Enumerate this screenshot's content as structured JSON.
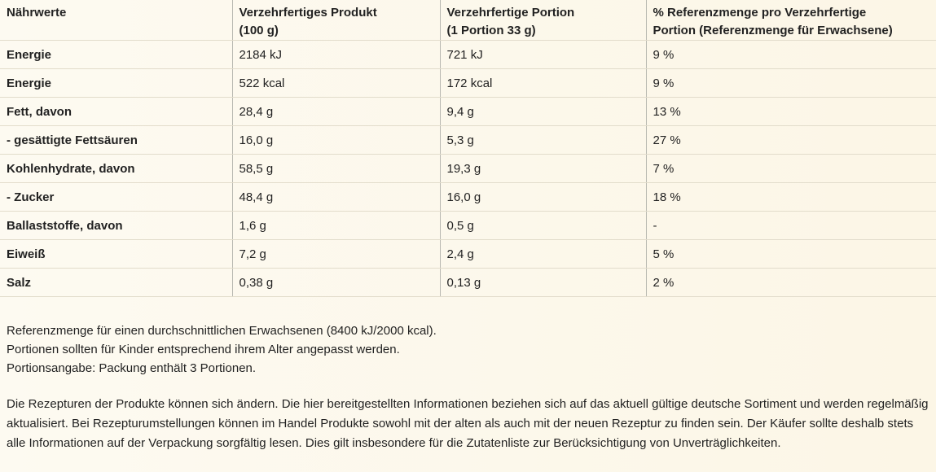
{
  "table": {
    "headers": [
      [
        "Nährwerte"
      ],
      [
        "Verzehrfertiges Produkt",
        "(100 g)"
      ],
      [
        "Verzehrfertige Portion",
        "(1 Portion 33 g)"
      ],
      [
        "% Referenzmenge pro Verzehrfertige",
        "Portion (Referenzmenge für Erwachsene)"
      ]
    ],
    "rows": [
      [
        "Energie",
        "2184 kJ",
        "721 kJ",
        "9 %"
      ],
      [
        "Energie",
        "522 kcal",
        "172 kcal",
        "9 %"
      ],
      [
        "Fett, davon",
        "28,4 g",
        "9,4 g",
        "13 %"
      ],
      [
        "- gesättigte Fettsäuren",
        "16,0 g",
        "5,3 g",
        "27 %"
      ],
      [
        "Kohlenhydrate, davon",
        "58,5 g",
        "19,3 g",
        "7 %"
      ],
      [
        "- Zucker",
        "48,4 g",
        "16,0 g",
        "18 %"
      ],
      [
        "Ballaststoffe, davon",
        "1,6 g",
        "0,5 g",
        "-"
      ],
      [
        "Eiweiß",
        "7,2 g",
        "2,4 g",
        "5 %"
      ],
      [
        "Salz",
        "0,38 g",
        "0,13 g",
        "2 %"
      ]
    ]
  },
  "notes": [
    "Referenzmenge für einen durchschnittlichen Erwachsenen (8400 kJ/2000 kcal).",
    "Portionen sollten für Kinder entsprechend ihrem Alter angepasst werden.",
    "Portionsangabe: Packung enthält 3 Portionen."
  ],
  "disclaimer": "Die Rezepturen der Produkte können sich ändern. Die hier bereitgestellten Informationen beziehen sich auf das aktuell gültige deutsche Sortiment und werden regelmäßig aktualisiert. Bei Rezepturumstellungen können im Handel Produkte sowohl mit der alten als auch mit der neuen Rezeptur zu finden sein. Der Käufer sollte deshalb stets alle Informationen auf der Verpackung sorgfältig lesen. Dies gilt insbesondere für die Zutatenliste zur Berücksichtigung von Unverträglichkeiten."
}
